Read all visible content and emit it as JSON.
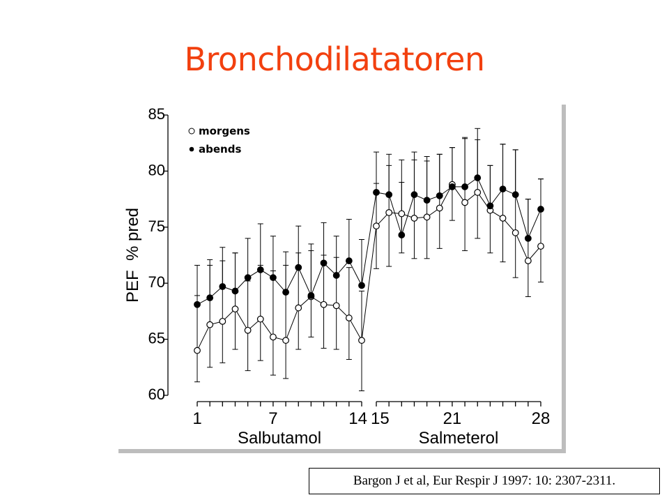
{
  "slide": {
    "title": "Bronchodilatatoren",
    "citation": "Bargon J et al, Eur Respir J 1997: 10: 2307-2311."
  },
  "chart_data": {
    "type": "line",
    "ylabel": "PEF  % pred",
    "ylim": [
      60,
      85
    ],
    "yticks": [
      60,
      65,
      70,
      75,
      80,
      85
    ],
    "xlim": [
      1,
      28
    ],
    "xtick_labels": [
      1,
      7,
      14,
      15,
      21,
      28
    ],
    "grid": false,
    "legend_position": "top-left",
    "groups": [
      {
        "label": "Salbutamol",
        "days": [
          1,
          14
        ]
      },
      {
        "label": "Salmeterol",
        "days": [
          15,
          28
        ]
      }
    ],
    "x": [
      1,
      2,
      3,
      4,
      5,
      6,
      7,
      8,
      9,
      10,
      11,
      12,
      13,
      14,
      15,
      16,
      17,
      18,
      19,
      20,
      21,
      22,
      23,
      24,
      25,
      26,
      27,
      28
    ],
    "series": [
      {
        "name": "morgens",
        "marker": "open-circle",
        "values": [
          64.0,
          66.3,
          66.6,
          67.7,
          65.8,
          66.8,
          65.2,
          64.9,
          67.8,
          68.8,
          68.1,
          68.0,
          66.9,
          64.9,
          75.1,
          76.3,
          76.2,
          75.8,
          75.9,
          76.7,
          78.8,
          77.2,
          78.1,
          76.5,
          75.8,
          74.5,
          72.0,
          73.3
        ],
        "err_upper": [
          68.9,
          71.6,
          72.0,
          72.7,
          70.2,
          71.6,
          71.1,
          71.6,
          72.7,
          73.5,
          72.5,
          72.3,
          71.4,
          69.3,
          78.9,
          80.5,
          81.0,
          81.0,
          81.3,
          81.5,
          82.1,
          83.0,
          82.8,
          80.5,
          82.4,
          81.9,
          77.5,
          79.3
        ],
        "err_lower": [
          61.2,
          62.5,
          62.9,
          64.1,
          62.2,
          63.1,
          61.8,
          61.5,
          64.1,
          65.2,
          64.2,
          64.1,
          63.2,
          60.4,
          71.3,
          71.5,
          72.7,
          72.2,
          72.2,
          73.1,
          75.6,
          72.9,
          74.0,
          72.7,
          71.9,
          70.5,
          68.8,
          70.1
        ]
      },
      {
        "name": "abends",
        "marker": "filled-circle",
        "values": [
          68.1,
          68.7,
          69.7,
          69.3,
          70.5,
          71.2,
          70.5,
          69.2,
          71.4,
          68.9,
          71.8,
          70.7,
          72.0,
          69.8,
          78.1,
          77.9,
          74.3,
          77.9,
          77.4,
          77.8,
          78.6,
          78.6,
          79.4,
          76.9,
          78.4,
          77.9,
          74.0,
          76.6
        ],
        "err_upper": [
          71.6,
          72.1,
          73.2,
          72.7,
          74.0,
          75.3,
          74.2,
          72.8,
          75.1,
          72.9,
          75.4,
          74.2,
          75.7,
          73.9,
          81.7,
          81.5,
          79.0,
          81.7,
          80.9,
          81.5,
          82.1,
          82.9,
          83.8,
          80.5,
          82.4,
          81.9,
          77.5,
          79.3
        ]
      }
    ]
  }
}
